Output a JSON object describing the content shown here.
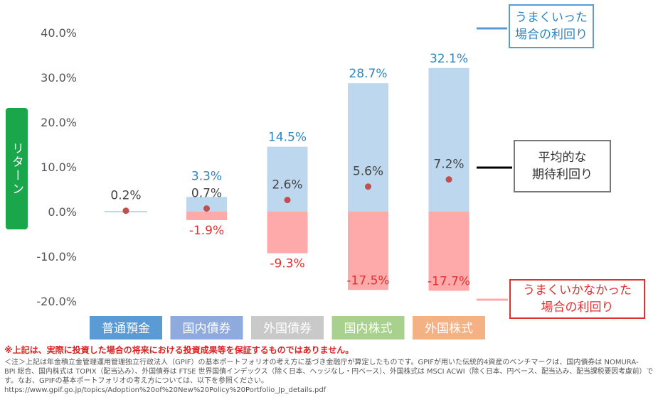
{
  "chart_data": {
    "type": "bar",
    "ylabel": "リターン",
    "ylim": [
      -20,
      40
    ],
    "yticks": [
      "40.0%",
      "30.0%",
      "20.0%",
      "10.0%",
      "0.0%",
      "-10.0%",
      "-20.0%"
    ],
    "ytick_values": [
      40,
      30,
      20,
      10,
      0,
      -10,
      -20
    ],
    "categories": [
      "普通預金",
      "国内債券",
      "外国債券",
      "国内株式",
      "外国株式"
    ],
    "category_colors": [
      "#5b9bd5",
      "#8faadc",
      "#c9c9c9",
      "#a9d18e",
      "#f4b183"
    ],
    "grid": false,
    "series": [
      {
        "name": "うまくいった場合の利回り",
        "values": [
          0.2,
          3.3,
          14.5,
          28.7,
          32.1
        ],
        "labels": [
          "",
          "3.3%",
          "14.5%",
          "28.7%",
          "32.1%"
        ],
        "color": "#bdd7ee",
        "label_color": "#2e86c1"
      },
      {
        "name": "平均的な期待利回り",
        "values": [
          0.2,
          0.7,
          2.6,
          5.6,
          7.2
        ],
        "labels": [
          "0.2%",
          "0.7%",
          "2.6%",
          "5.6%",
          "7.2%"
        ],
        "color": "#c0504d",
        "label_color": "#444444"
      },
      {
        "name": "うまくいかなかった場合の利回り",
        "values": [
          0.2,
          -1.9,
          -9.3,
          -17.5,
          -17.7
        ],
        "labels": [
          "",
          "-1.9%",
          "-9.3%",
          "-17.5%",
          "-17.7%"
        ],
        "color": "#ffaaaa",
        "label_color": "#e03030"
      }
    ],
    "annotations": {
      "good": "うまくいった\n場合の利回り",
      "avg": "平均的な\n期待利回り",
      "bad": "うまくいかなかった\n場合の利回り"
    }
  },
  "footnote": {
    "warning": "※上記は、実際に投資した場合の将来における投資成果等を保証するものではありません。",
    "note1": "＜注＞上記は年金積立金管理運用管理独立行政法人（GPIF）の基本ポートフォリオの考え方に基づき金融庁が算定したものです。GPIFが用いた伝統的4資産のベンチマークは、国内債券は NOMURA-",
    "note2": "BPI 総合、国内株式は TOPIX（配当込み）、外国債券は FTSE 世界国債インデックス（除く日本、ヘッジなし・円ベース）、外国株式は MSCI ACWI（除く日本、円ベース、配当込み、配当課税要因考慮前）で",
    "note3": "す。なお、GPIFの基本ポートフォリオの考え方については、以下を参照ください。",
    "url": "https://www.gpif.go.jp/topics/Adoption%20of%20New%20Policy%20Portfolio_Jp_details.pdf"
  }
}
